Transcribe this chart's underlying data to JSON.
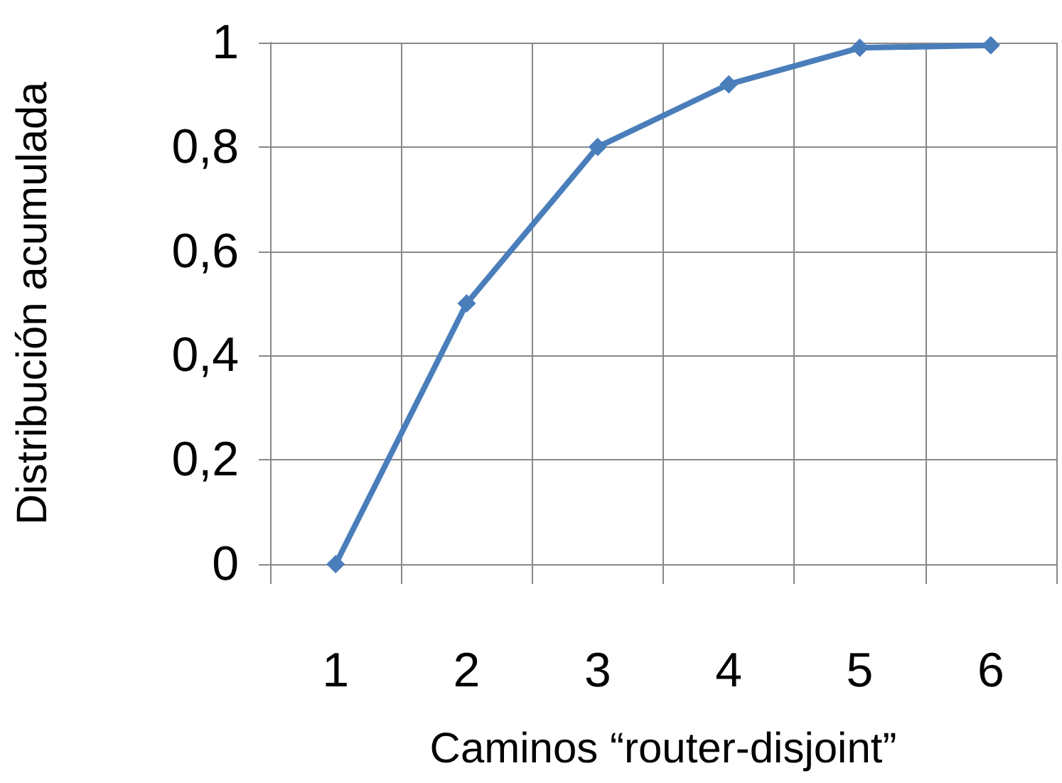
{
  "chart_data": {
    "type": "line",
    "xlabel": "Caminos “router-disjoint”",
    "ylabel": "Distribución acumulada",
    "categories": [
      "1",
      "2",
      "3",
      "4",
      "5",
      "6"
    ],
    "series": [
      {
        "color": "#4a7ebb",
        "values": [
          0,
          0.5,
          0.8,
          0.92,
          0.99,
          0.995
        ]
      }
    ],
    "ylim": [
      0,
      1
    ],
    "yticks": [
      0,
      {
        "value": 0.2,
        "label": "0,2"
      },
      {
        "value": 0.4,
        "label": "0,4"
      },
      {
        "value": 0.6,
        "label": "0,6"
      },
      {
        "value": 0.8,
        "label": "0,8"
      },
      1
    ],
    "grid": true,
    "marker": "diamond",
    "line_style": "solid"
  }
}
